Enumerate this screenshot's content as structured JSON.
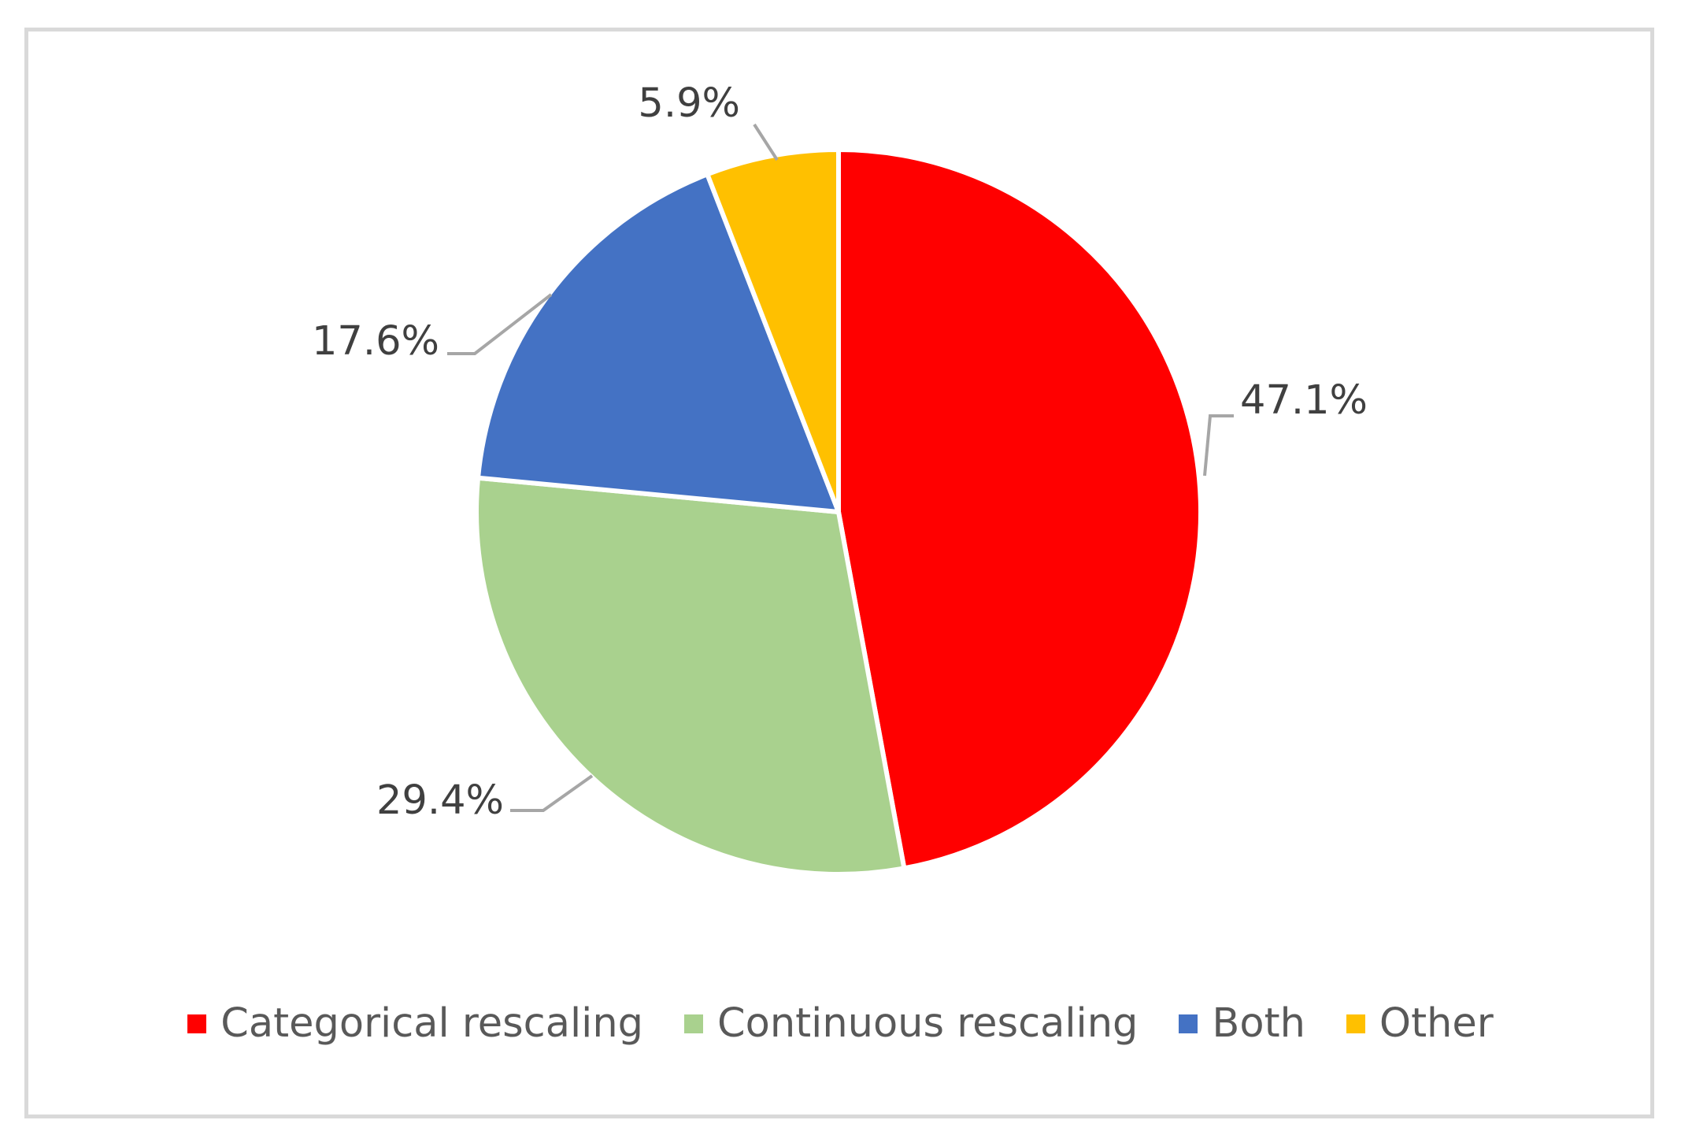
{
  "chart_data": {
    "type": "pie",
    "title": "",
    "categories": [
      "Categorical rescaling",
      "Continuous rescaling",
      "Both",
      "Other"
    ],
    "values": [
      47.1,
      29.4,
      17.6,
      5.9
    ],
    "data_labels": [
      "47.1%",
      "29.4%",
      "17.6%",
      "5.9%"
    ],
    "colors": [
      "#ff0000",
      "#a9d18e",
      "#4472c4",
      "#ffc000"
    ],
    "legend_position": "bottom",
    "label_position": "outside-with-leader-lines",
    "start_angle": "12 o'clock",
    "direction": "clockwise"
  }
}
